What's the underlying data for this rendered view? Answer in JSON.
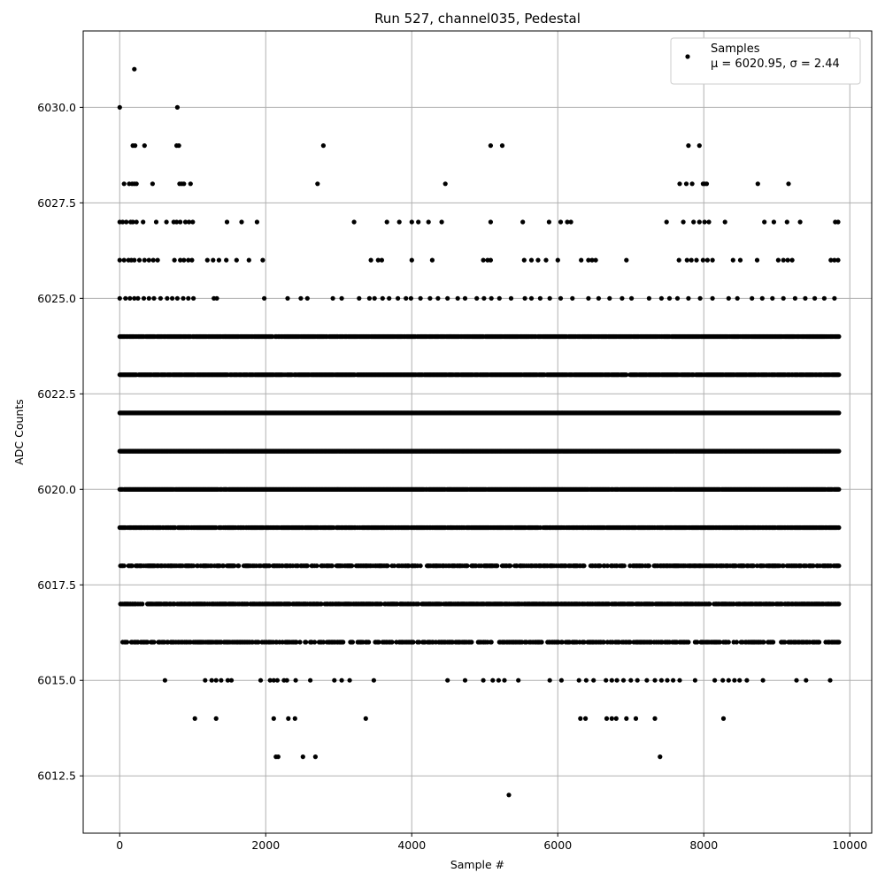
{
  "chart_data": {
    "type": "scatter",
    "title": "Run 527, channel035, Pedestal",
    "xlabel": "Sample #",
    "ylabel": "ADC Counts",
    "xlim": [
      -500,
      10300
    ],
    "ylim": [
      6011,
      6032
    ],
    "x_ticks": [
      0,
      2000,
      4000,
      6000,
      8000,
      10000
    ],
    "x_tick_labels": [
      "0",
      "2000",
      "4000",
      "6000",
      "8000",
      "10000"
    ],
    "y_ticks": [
      6012.5,
      6015.0,
      6017.5,
      6020.0,
      6022.5,
      6025.0,
      6027.5,
      6030.0
    ],
    "y_tick_labels": [
      "6012.5",
      "6015.0",
      "6017.5",
      "6020.0",
      "6022.5",
      "6025.0",
      "6027.5",
      "6030.0"
    ],
    "grid": true,
    "legend": {
      "placement": "top-right",
      "entries": [
        {
          "label": "Samples",
          "stats": "μ = 6020.95, σ = 2.44"
        }
      ]
    },
    "colors": {
      "marker": "#000000",
      "grid": "#b0b0b0",
      "axes": "#000000"
    },
    "series": [
      {
        "name": "Samples",
        "values_by_level": [
          {
            "y": 6031,
            "x": [
              200
            ]
          },
          {
            "y": 6030,
            "x": [
              0,
              790
            ]
          },
          {
            "y": 6029,
            "x": [
              180,
              210,
              340,
              780,
              810,
              2790,
              5080,
              5240,
              7790,
              7940
            ]
          },
          {
            "y": 6028,
            "x": [
              60,
              130,
              170,
              200,
              230,
              450,
              820,
              850,
              880,
              970,
              2710,
              4460,
              7670,
              7760,
              7840,
              7990,
              8010,
              8040,
              8740,
              9160
            ]
          },
          {
            "y": 6027,
            "x": [
              0,
              40,
              90,
              150,
              180,
              230,
              320,
              500,
              640,
              740,
              780,
              830,
              900,
              950,
              1000,
              1470,
              1670,
              1880,
              3210,
              3660,
              3830,
              4000,
              4090,
              4230,
              4410,
              5080,
              5520,
              5880,
              6040,
              6130,
              6180,
              7490,
              7720,
              7860,
              7940,
              8010,
              8070,
              8290,
              8830,
              8960,
              9140,
              9320,
              9800,
              9840
            ]
          },
          {
            "y": 6026,
            "x": [
              0,
              60,
              120,
              160,
              200,
              270,
              340,
              400,
              460,
              520,
              750,
              830,
              880,
              940,
              990,
              1200,
              1280,
              1360,
              1460,
              1600,
              1770,
              1960,
              3440,
              3540,
              3590,
              4000,
              4280,
              4980,
              5040,
              5080,
              5540,
              5640,
              5730,
              5840,
              6000,
              6320,
              6420,
              6470,
              6520,
              6940,
              7660,
              7770,
              7830,
              7900,
              7990,
              8050,
              8120,
              8400,
              8500,
              8730,
              9020,
              9090,
              9150,
              9210,
              9740,
              9790,
              9840
            ]
          },
          {
            "y": 6025,
            "x": [
              0,
              80,
              140,
              200,
              250,
              330,
              400,
              470,
              560,
              650,
              720,
              790,
              870,
              940,
              1010,
              1290,
              1330,
              1980,
              2300,
              2480,
              2570,
              2920,
              3040,
              3280,
              3420,
              3490,
              3600,
              3690,
              3810,
              3920,
              3990,
              4120,
              4250,
              4360,
              4490,
              4630,
              4730,
              4890,
              4990,
              5090,
              5200,
              5360,
              5550,
              5640,
              5760,
              5890,
              6040,
              6200,
              6420,
              6560,
              6710,
              6880,
              7010,
              7250,
              7420,
              7530,
              7640,
              7790,
              7950,
              8120,
              8340,
              8460,
              8660,
              8800,
              8940,
              9090,
              9250,
              9390,
              9520,
              9650,
              9790
            ]
          }
        ],
        "dense_band_levels": [
          6024,
          6023,
          6022,
          6021,
          6020,
          6019,
          6018,
          6017,
          6016
        ],
        "sparse_levels_below": [
          {
            "y": 6015,
            "x": [
              620,
              1170,
              1260,
              1320,
              1390,
              1480,
              1530,
              1930,
              2060,
              2110,
              2160,
              2250,
              2290,
              2410,
              2610,
              2940,
              3040,
              3150,
              3480,
              4490,
              4730,
              4980,
              5110,
              5190,
              5270,
              5460,
              5890,
              6050,
              6290,
              6390,
              6490,
              6660,
              6740,
              6810,
              6900,
              7000,
              7090,
              7220,
              7330,
              7420,
              7500,
              7580,
              7670,
              7880,
              8150,
              8260,
              8340,
              8420,
              8490,
              8590,
              8810,
              9270,
              9400,
              9730
            ]
          },
          {
            "y": 6014,
            "x": [
              1030,
              1320,
              2110,
              2310,
              2400,
              3370,
              6310,
              6380,
              6670,
              6740,
              6800,
              6940,
              7070,
              7330,
              8270
            ]
          },
          {
            "y": 6013,
            "x": [
              2140,
              2170,
              2510,
              2680,
              7400
            ]
          },
          {
            "y": 6012,
            "x": [
              5330
            ]
          }
        ]
      }
    ]
  }
}
